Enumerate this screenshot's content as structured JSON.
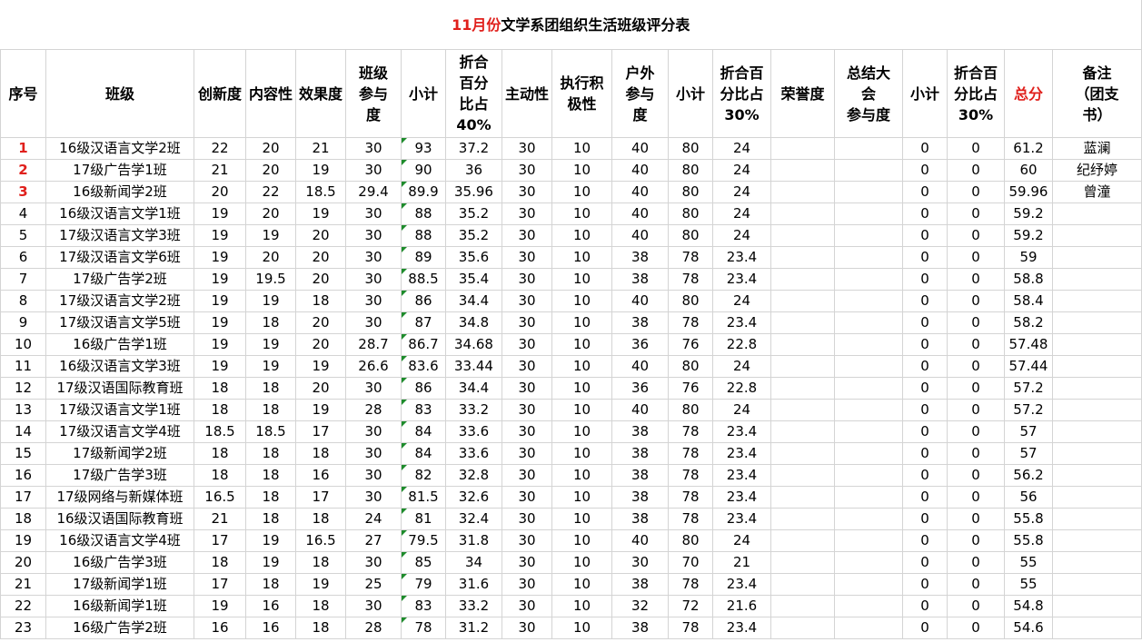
{
  "sheet": {
    "title_month": "11月份",
    "title_rest": "文学系团组织生活班级评分表",
    "colors": {
      "accent_red": "#e0201c",
      "comment_flag": "#1e8c2c",
      "grid": "#d4d4d4"
    },
    "headers": [
      "序号",
      "班级",
      "创新度",
      "内容性",
      "效果度",
      "班级\n参与\n度",
      "小计",
      "折合\n百分\n比占\n40%",
      "主动性",
      "执行积\n极性",
      "户外\n参与\n度",
      "小计",
      "折合百\n分比占\n30%",
      "荣誉度",
      "总结大\n会\n参与度",
      "小计",
      "折合百\n分比占\n30%",
      "总分",
      "备注\n（团支\n书）"
    ],
    "rows": [
      [
        "1",
        "16级汉语言文学2班",
        "22",
        "20",
        "21",
        "30",
        "93",
        "37.2",
        "30",
        "10",
        "40",
        "80",
        "24",
        "",
        "",
        "0",
        "0",
        "61.2",
        "蓝澜"
      ],
      [
        "2",
        "17级广告学1班",
        "21",
        "20",
        "19",
        "30",
        "90",
        "36",
        "30",
        "10",
        "40",
        "80",
        "24",
        "",
        "",
        "0",
        "0",
        "60",
        "纪纾婷"
      ],
      [
        "3",
        "16级新闻学2班",
        "20",
        "22",
        "18.5",
        "29.4",
        "89.9",
        "35.96",
        "30",
        "10",
        "40",
        "80",
        "24",
        "",
        "",
        "0",
        "0",
        "59.96",
        "曾潼"
      ],
      [
        "4",
        "16级汉语言文学1班",
        "19",
        "20",
        "19",
        "30",
        "88",
        "35.2",
        "30",
        "10",
        "40",
        "80",
        "24",
        "",
        "",
        "0",
        "0",
        "59.2",
        ""
      ],
      [
        "5",
        "17级汉语言文学3班",
        "19",
        "19",
        "20",
        "30",
        "88",
        "35.2",
        "30",
        "10",
        "40",
        "80",
        "24",
        "",
        "",
        "0",
        "0",
        "59.2",
        ""
      ],
      [
        "6",
        "17级汉语言文学6班",
        "19",
        "20",
        "20",
        "30",
        "89",
        "35.6",
        "30",
        "10",
        "38",
        "78",
        "23.4",
        "",
        "",
        "0",
        "0",
        "59",
        ""
      ],
      [
        "7",
        "17级广告学2班",
        "19",
        "19.5",
        "20",
        "30",
        "88.5",
        "35.4",
        "30",
        "10",
        "38",
        "78",
        "23.4",
        "",
        "",
        "0",
        "0",
        "58.8",
        ""
      ],
      [
        "8",
        "17级汉语言文学2班",
        "19",
        "19",
        "18",
        "30",
        "86",
        "34.4",
        "30",
        "10",
        "40",
        "80",
        "24",
        "",
        "",
        "0",
        "0",
        "58.4",
        ""
      ],
      [
        "9",
        "17级汉语言文学5班",
        "19",
        "18",
        "20",
        "30",
        "87",
        "34.8",
        "30",
        "10",
        "38",
        "78",
        "23.4",
        "",
        "",
        "0",
        "0",
        "58.2",
        ""
      ],
      [
        "10",
        "16级广告学1班",
        "19",
        "19",
        "20",
        "28.7",
        "86.7",
        "34.68",
        "30",
        "10",
        "36",
        "76",
        "22.8",
        "",
        "",
        "0",
        "0",
        "57.48",
        ""
      ],
      [
        "11",
        "16级汉语言文学3班",
        "19",
        "19",
        "19",
        "26.6",
        "83.6",
        "33.44",
        "30",
        "10",
        "40",
        "80",
        "24",
        "",
        "",
        "0",
        "0",
        "57.44",
        ""
      ],
      [
        "12",
        "17级汉语国际教育班",
        "18",
        "18",
        "20",
        "30",
        "86",
        "34.4",
        "30",
        "10",
        "36",
        "76",
        "22.8",
        "",
        "",
        "0",
        "0",
        "57.2",
        ""
      ],
      [
        "13",
        "17级汉语言文学1班",
        "18",
        "18",
        "19",
        "28",
        "83",
        "33.2",
        "30",
        "10",
        "40",
        "80",
        "24",
        "",
        "",
        "0",
        "0",
        "57.2",
        ""
      ],
      [
        "14",
        "17级汉语言文学4班",
        "18.5",
        "18.5",
        "17",
        "30",
        "84",
        "33.6",
        "30",
        "10",
        "38",
        "78",
        "23.4",
        "",
        "",
        "0",
        "0",
        "57",
        ""
      ],
      [
        "15",
        "17级新闻学2班",
        "18",
        "18",
        "18",
        "30",
        "84",
        "33.6",
        "30",
        "10",
        "38",
        "78",
        "23.4",
        "",
        "",
        "0",
        "0",
        "57",
        ""
      ],
      [
        "16",
        "17级广告学3班",
        "18",
        "18",
        "16",
        "30",
        "82",
        "32.8",
        "30",
        "10",
        "38",
        "78",
        "23.4",
        "",
        "",
        "0",
        "0",
        "56.2",
        ""
      ],
      [
        "17",
        "17级网络与新媒体班",
        "16.5",
        "18",
        "17",
        "30",
        "81.5",
        "32.6",
        "30",
        "10",
        "38",
        "78",
        "23.4",
        "",
        "",
        "0",
        "0",
        "56",
        ""
      ],
      [
        "18",
        "16级汉语国际教育班",
        "21",
        "18",
        "18",
        "24",
        "81",
        "32.4",
        "30",
        "10",
        "38",
        "78",
        "23.4",
        "",
        "",
        "0",
        "0",
        "55.8",
        ""
      ],
      [
        "19",
        "16级汉语言文学4班",
        "17",
        "19",
        "16.5",
        "27",
        "79.5",
        "31.8",
        "30",
        "10",
        "40",
        "80",
        "24",
        "",
        "",
        "0",
        "0",
        "55.8",
        ""
      ],
      [
        "20",
        "16级广告学3班",
        "18",
        "19",
        "18",
        "30",
        "85",
        "34",
        "30",
        "10",
        "30",
        "70",
        "21",
        "",
        "",
        "0",
        "0",
        "55",
        ""
      ],
      [
        "21",
        "17级新闻学1班",
        "17",
        "18",
        "19",
        "25",
        "79",
        "31.6",
        "30",
        "10",
        "38",
        "78",
        "23.4",
        "",
        "",
        "0",
        "0",
        "55",
        ""
      ],
      [
        "22",
        "16级新闻学1班",
        "19",
        "16",
        "18",
        "30",
        "83",
        "33.2",
        "30",
        "10",
        "32",
        "72",
        "21.6",
        "",
        "",
        "0",
        "0",
        "54.8",
        ""
      ],
      [
        "23",
        "16级广告学2班",
        "16",
        "16",
        "18",
        "28",
        "78",
        "31.2",
        "30",
        "10",
        "38",
        "78",
        "23.4",
        "",
        "",
        "0",
        "0",
        "54.6",
        ""
      ]
    ]
  }
}
